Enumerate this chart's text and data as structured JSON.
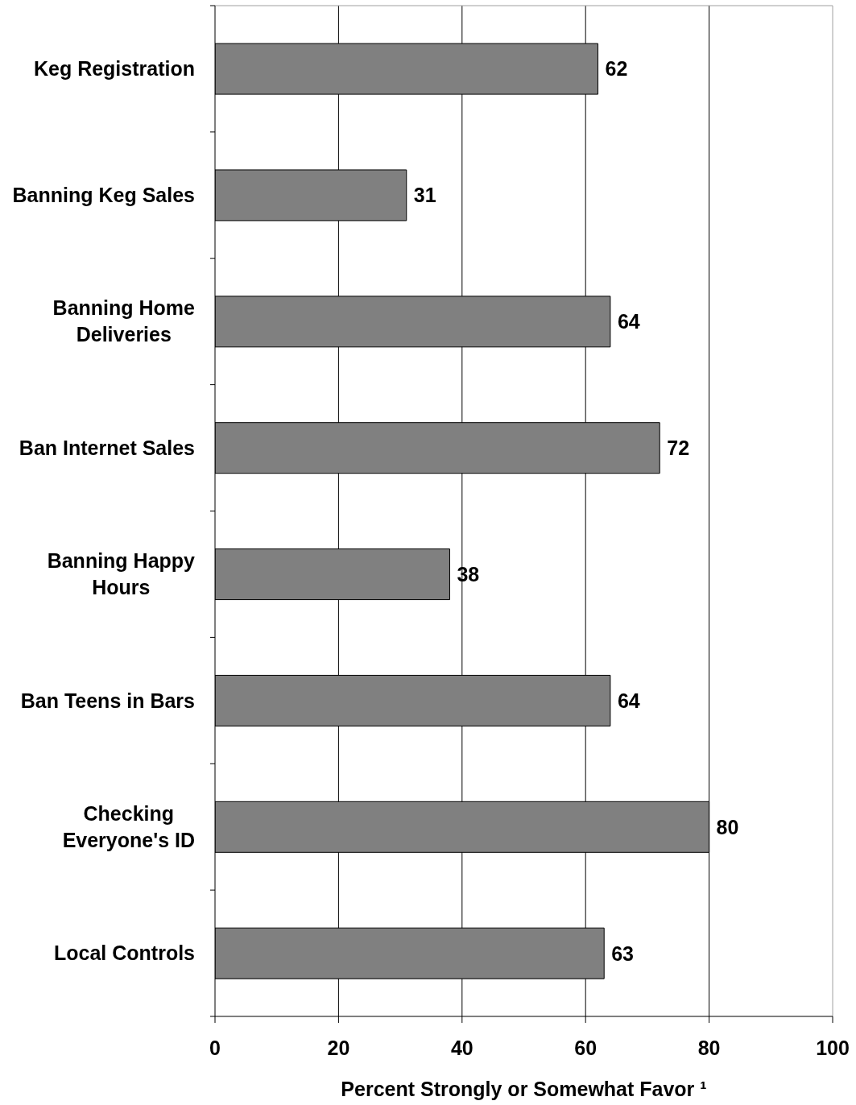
{
  "chart_data": {
    "type": "bar",
    "orientation": "horizontal",
    "categories": [
      "Keg Registration",
      "Banning Keg Sales",
      "Banning Home Deliveries",
      "Ban Internet Sales",
      "Banning Happy Hours",
      "Ban Teens in Bars",
      "Checking Everyone's ID",
      "Local Controls"
    ],
    "values": [
      62,
      31,
      64,
      72,
      38,
      64,
      80,
      63
    ],
    "color": "#808080",
    "xlabel": "Percent Strongly or Somewhat Favor ¹",
    "xlim": [
      0,
      100
    ],
    "xticks": [
      0,
      20,
      40,
      60,
      80,
      100
    ],
    "grid": "x",
    "data_labels": true
  }
}
